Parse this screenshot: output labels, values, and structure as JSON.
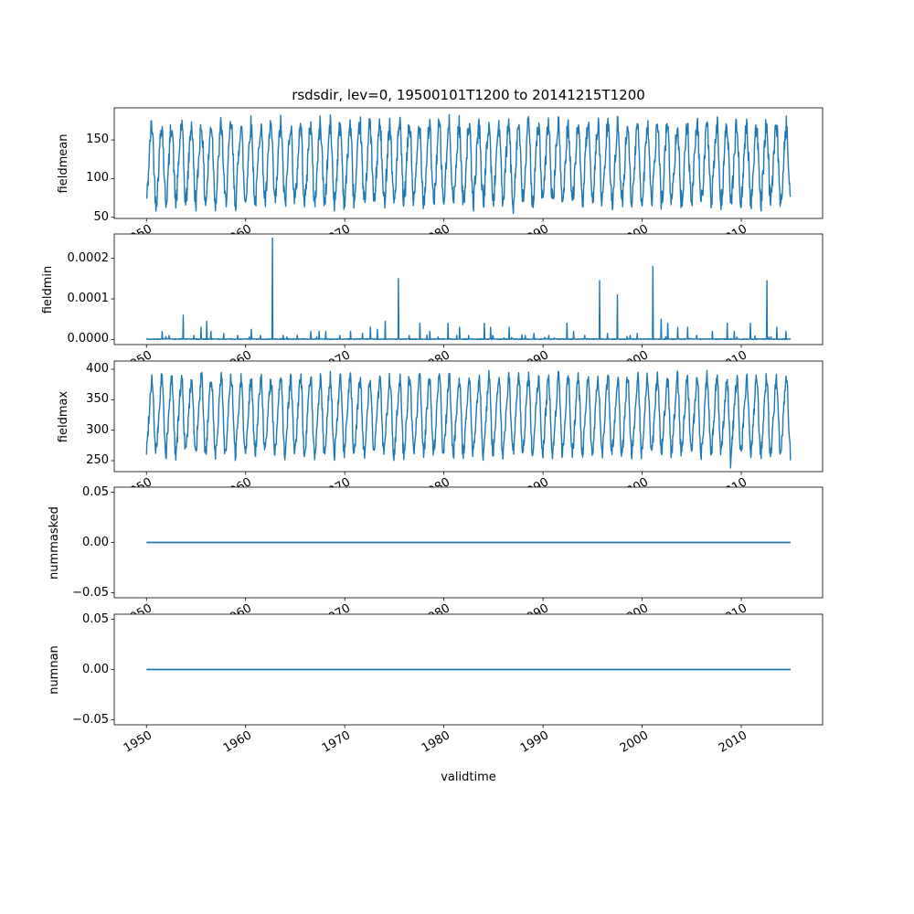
{
  "title": "rsdsdir, lev=0, 19500101T1200 to 20141215T1200",
  "xlabel": "validtime",
  "line_color": "#1f77b4",
  "chart_data": {
    "type": "line",
    "title": "rsdsdir, lev=0, 19500101T1200 to 20141215T1200",
    "xlabel": "validtime",
    "legend": "none",
    "grid": false,
    "x_axis": {
      "start": 1950.0,
      "end": 2014.96,
      "xlim": [
        1946.75,
        2018.2
      ],
      "ticks": [
        {
          "value": 1950,
          "label": "1950"
        },
        {
          "value": 1960,
          "label": "1960"
        },
        {
          "value": 1970,
          "label": "1970"
        },
        {
          "value": 1980,
          "label": "1980"
        },
        {
          "value": 1990,
          "label": "1990"
        },
        {
          "value": 2000,
          "label": "2000"
        },
        {
          "value": 2010,
          "label": "2010"
        }
      ]
    },
    "subplots": [
      {
        "name": "fieldmean",
        "ylabel": "fieldmean",
        "ylim": [
          48.5,
          191.5
        ],
        "yticks": [
          {
            "value": 50,
            "label": "50"
          },
          {
            "value": 100,
            "label": "100"
          },
          {
            "value": 150,
            "label": "150"
          }
        ],
        "summary": "Annual seasonal oscillation between about 55 and 185 for 1950-2015",
        "series": {
          "kind": "seasonal",
          "mean": 120,
          "amplitude": 48,
          "harmonic2": 5,
          "noise": 14,
          "samples_per_year": 24,
          "seed": 42,
          "outliers": [
            [
              1987.0,
              55
            ]
          ]
        }
      },
      {
        "name": "fieldmin",
        "ylabel": "fieldmin",
        "ylim": [
          -1.25e-05,
          0.00026
        ],
        "yticks": [
          {
            "value": 0.0,
            "label": "0.0000"
          },
          {
            "value": 0.0001,
            "label": "0.0001"
          },
          {
            "value": 0.0002,
            "label": "0.0002"
          }
        ],
        "summary": "Baseline near 0 with isolated spikes; largest ~0.00025 in 1963",
        "series": {
          "kind": "spikes",
          "baseline_noise": 2e-06,
          "samples_per_year": 24,
          "seed": 7,
          "spikes": [
            [
              1951.6,
              2e-05
            ],
            [
              1952.3,
              1e-05
            ],
            [
              1953.7,
              6e-05
            ],
            [
              1954.8,
              1e-05
            ],
            [
              1955.5,
              3e-05
            ],
            [
              1956.1,
              4.5e-05
            ],
            [
              1956.5,
              2e-05
            ],
            [
              1957.8,
              1.5e-05
            ],
            [
              1959.2,
              1e-05
            ],
            [
              1960.6,
              2.5e-05
            ],
            [
              1961.5,
              1e-05
            ],
            [
              1962.7,
              0.00025
            ],
            [
              1963.8,
              1e-05
            ],
            [
              1965.2,
              1e-05
            ],
            [
              1966.6,
              2e-05
            ],
            [
              1967.4,
              2e-05
            ],
            [
              1968.1,
              2e-05
            ],
            [
              1969.5,
              1e-05
            ],
            [
              1970.6,
              2e-05
            ],
            [
              1971.8,
              1.5e-05
            ],
            [
              1972.6,
              3e-05
            ],
            [
              1973.3,
              2.5e-05
            ],
            [
              1974.1,
              4.5e-05
            ],
            [
              1975.4,
              0.00015
            ],
            [
              1976.5,
              1e-05
            ],
            [
              1977.6,
              4e-05
            ],
            [
              1978.6,
              2e-05
            ],
            [
              1980.4,
              4e-05
            ],
            [
              1981.6,
              3e-05
            ],
            [
              1982.5,
              1e-05
            ],
            [
              1984.1,
              4e-05
            ],
            [
              1984.7,
              3e-05
            ],
            [
              1986.6,
              3e-05
            ],
            [
              1988.2,
              1e-05
            ],
            [
              1989.1,
              1.5e-05
            ],
            [
              1990.6,
              1e-05
            ],
            [
              1992.4,
              4e-05
            ],
            [
              1993.1,
              2e-05
            ],
            [
              1994.2,
              1e-05
            ],
            [
              1995.7,
              0.000145
            ],
            [
              1996.5,
              1.5e-05
            ],
            [
              1997.5,
              0.00011
            ],
            [
              1998.8,
              1e-05
            ],
            [
              1999.5,
              1.5e-05
            ],
            [
              2001.1,
              0.00018
            ],
            [
              2001.9,
              5e-05
            ],
            [
              2002.6,
              4e-05
            ],
            [
              2003.6,
              3e-05
            ],
            [
              2004.6,
              3e-05
            ],
            [
              2005.5,
              1e-05
            ],
            [
              2007.1,
              2e-05
            ],
            [
              2008.6,
              4e-05
            ],
            [
              2009.3,
              2e-05
            ],
            [
              2010.9,
              4e-05
            ],
            [
              2012.6,
              0.000145
            ],
            [
              2013.6,
              3e-05
            ],
            [
              2014.5,
              2e-05
            ]
          ]
        }
      },
      {
        "name": "fieldmax",
        "ylabel": "fieldmax",
        "ylim": [
          232,
          413.5
        ],
        "yticks": [
          {
            "value": 250,
            "label": "250"
          },
          {
            "value": 300,
            "label": "300"
          },
          {
            "value": 350,
            "label": "350"
          },
          {
            "value": 400,
            "label": "400"
          }
        ],
        "summary": "Annual seasonal oscillation between about 250 and 405; low outlier ~238 near 2009",
        "series": {
          "kind": "seasonal",
          "mean": 324,
          "amplitude": 58,
          "harmonic2": 10,
          "noise": 13,
          "samples_per_year": 24,
          "seed": 99,
          "outliers": [
            [
              2008.9,
              238
            ]
          ]
        }
      },
      {
        "name": "nummasked",
        "ylabel": "nummasked",
        "ylim": [
          -0.055,
          0.055
        ],
        "yticks": [
          {
            "value": -0.05,
            "label": "−0.05"
          },
          {
            "value": 0.0,
            "label": "0.00"
          },
          {
            "value": 0.05,
            "label": "0.05"
          }
        ],
        "summary": "Constant 0 for entire period",
        "series": {
          "kind": "constant",
          "value": 0
        }
      },
      {
        "name": "numnan",
        "ylabel": "numnan",
        "ylim": [
          -0.055,
          0.055
        ],
        "yticks": [
          {
            "value": -0.05,
            "label": "−0.05"
          },
          {
            "value": 0.0,
            "label": "0.00"
          },
          {
            "value": 0.05,
            "label": "0.05"
          }
        ],
        "summary": "Constant 0 for entire period",
        "series": {
          "kind": "constant",
          "value": 0
        }
      }
    ]
  }
}
